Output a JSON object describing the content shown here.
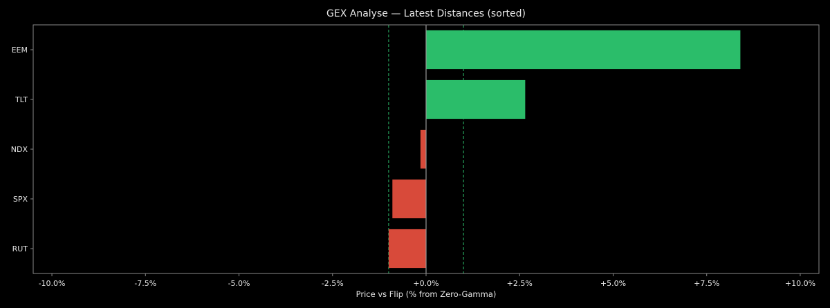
{
  "chart_data": {
    "type": "bar",
    "orientation": "horizontal",
    "title": "GEX Analyse — Latest Distances (sorted)",
    "xlabel": "Price vs Flip (% from Zero-Gamma)",
    "ylabel": "",
    "categories": [
      "EEM",
      "TLT",
      "NDX",
      "SPX",
      "RUT"
    ],
    "values": [
      8.4,
      2.65,
      -0.15,
      -0.9,
      -1.0
    ],
    "xlim": [
      -10.5,
      10.5
    ],
    "xticks": [
      -10,
      -7.5,
      -5,
      -2.5,
      0,
      2.5,
      5,
      7.5,
      10
    ],
    "xtick_labels": [
      "-10.0%",
      "-7.5%",
      "-5.0%",
      "-2.5%",
      "+0.0%",
      "+2.5%",
      "+5.0%",
      "+7.5%",
      "+10.0%"
    ],
    "reference_lines": [
      -1,
      1
    ],
    "grid": false,
    "legend": "none",
    "colors": {
      "positive": "#2bbd6a",
      "negative": "#d84a3a",
      "reference_line": "#2bbd6a",
      "zero_line": "#9a9a9a",
      "axes": "#8a8a8a",
      "text": "#e6e6e6",
      "background": "#000000"
    }
  }
}
